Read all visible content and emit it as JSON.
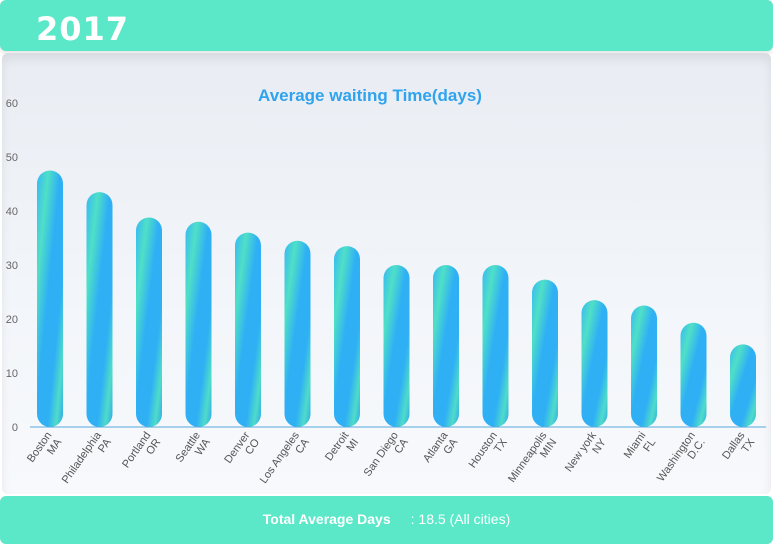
{
  "header": {
    "year": "2017"
  },
  "footer": {
    "label": "Total Average Days",
    "value": ": 18.5 (All cities)"
  },
  "colors": {
    "accent": "#5ae8c8",
    "bar_blue": "#2fb0f5",
    "bar_green": "#4fe0c6",
    "title": "#2fa3ee",
    "axis": "#55aadd"
  },
  "chart_data": {
    "type": "bar",
    "title": "Average waiting Time(days)",
    "xlabel": "",
    "ylabel": "",
    "ylim": [
      0,
      60
    ],
    "yticks": [
      0,
      10,
      20,
      30,
      40,
      50,
      60
    ],
    "grid": false,
    "categories": [
      [
        "Boston",
        "MA"
      ],
      [
        "Philadelphia",
        "PA"
      ],
      [
        "Portland",
        "OR"
      ],
      [
        "Seattle",
        "WA"
      ],
      [
        "Denver",
        "CO"
      ],
      [
        "Los Angeles",
        "CA"
      ],
      [
        "Detroit",
        "MI"
      ],
      [
        "San Diego",
        "CA"
      ],
      [
        "Atlanta",
        "GA"
      ],
      [
        "Houston",
        "TX"
      ],
      [
        "Minneapolis",
        "MIN"
      ],
      [
        "New york",
        "NY"
      ],
      [
        "Miami",
        "FL"
      ],
      [
        "Washington",
        "D.C."
      ],
      [
        "Dallas",
        "TX"
      ]
    ],
    "values": [
      47.5,
      43.5,
      38.8,
      38,
      36,
      34.5,
      33.5,
      30,
      30,
      30,
      27.3,
      23.5,
      22.5,
      19.3,
      15.3
    ]
  }
}
